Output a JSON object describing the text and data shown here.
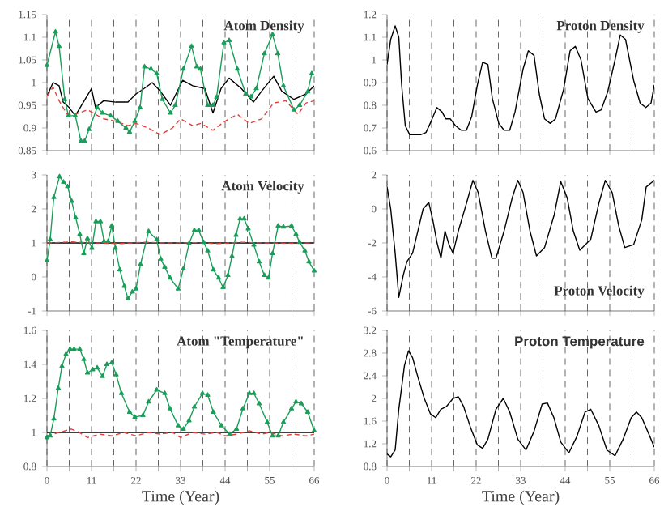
{
  "chart_data": [
    {
      "type": "line",
      "title": "Atom Density",
      "xlim": [
        0,
        66
      ],
      "ylim": [
        0.85,
        1.15
      ],
      "yticks": [
        0.85,
        0.9,
        0.95,
        1,
        1.05,
        1.1,
        1.15
      ],
      "tick_labels": "y",
      "grid": "x",
      "xticks": [
        0,
        {
          "value": 5.5,
          "label": null
        },
        11,
        {
          "value": 16.5,
          "label": null
        },
        22,
        {
          "value": 27.5,
          "label": null
        },
        33,
        {
          "value": 38.5,
          "label": null
        },
        44,
        {
          "value": 49.5,
          "label": null
        },
        55,
        {
          "value": 60.5,
          "label": null
        },
        66
      ],
      "series": [
        {
          "color": "#000000",
          "line_style": "solid",
          "marker": "none",
          "x": [
            0,
            1.5,
            3,
            4,
            5.5,
            7,
            9,
            11,
            12,
            14,
            17,
            20,
            22,
            24,
            26,
            28,
            30.5,
            33.5,
            36,
            39,
            41,
            43,
            45,
            48,
            51,
            53,
            56,
            58,
            61,
            64,
            66
          ],
          "values": [
            0.97,
            1.0,
            0.993,
            0.957,
            0.945,
            0.927,
            0.957,
            0.987,
            0.945,
            0.96,
            0.957,
            0.957,
            0.975,
            0.987,
            1.0,
            0.981,
            0.95,
            1.005,
            0.993,
            0.987,
            0.933,
            0.987,
            1.01,
            0.987,
            0.957,
            0.981,
            1.014,
            0.981,
            0.963,
            0.975,
            0.993
          ]
        },
        {
          "color": "#e0403a",
          "line_style": "dashed",
          "marker": "none",
          "x": [
            0,
            1.5,
            3,
            5,
            7,
            10,
            14,
            17,
            20,
            22,
            25,
            28,
            31,
            33,
            36,
            38,
            41,
            44,
            47,
            50,
            53,
            56,
            59,
            62,
            64,
            66
          ],
          "values": [
            0.97,
            0.99,
            0.96,
            0.93,
            0.93,
            0.94,
            0.92,
            0.915,
            0.905,
            0.91,
            0.9,
            0.885,
            0.9,
            0.92,
            0.905,
            0.91,
            0.895,
            0.915,
            0.93,
            0.91,
            0.92,
            0.955,
            0.96,
            0.93,
            0.955,
            0.96
          ]
        },
        {
          "color": "#1a9e5a",
          "line_style": "solid",
          "marker": "triangle",
          "x": [
            0,
            2.1,
            3,
            4.4,
            5.3,
            7,
            8.4,
            9.3,
            10.4,
            12.4,
            13.7,
            15.7,
            17.5,
            19.5,
            20.4,
            21.7,
            23,
            24.1,
            25.7,
            27.1,
            28.5,
            30.5,
            31.7,
            33.7,
            35.7,
            37,
            37.9,
            39.7,
            41,
            41.9,
            43.7,
            45,
            47,
            49.1,
            50.4,
            51.7,
            53.7,
            55.7,
            57,
            58.4,
            61,
            62.4,
            64.4,
            65.4
          ],
          "values": [
            1.038,
            1.112,
            1.08,
            0.963,
            0.927,
            0.927,
            0.871,
            0.871,
            0.897,
            0.945,
            0.933,
            0.927,
            0.915,
            0.9,
            0.891,
            0.915,
            0.945,
            1.035,
            1.03,
            1.02,
            0.963,
            0.933,
            0.95,
            1.03,
            1.08,
            1.035,
            1.03,
            0.95,
            0.95,
            0.968,
            1.088,
            1.093,
            1.03,
            0.975,
            0.969,
            0.987,
            1.064,
            1.106,
            1.064,
            0.993,
            0.94,
            0.95,
            0.98,
            1.02
          ]
        }
      ]
    },
    {
      "type": "line",
      "title": "Proton Density",
      "xlim": [
        0,
        66
      ],
      "ylim": [
        0.6,
        1.2
      ],
      "yticks": [
        0.6,
        0.7,
        0.8,
        0.9,
        1,
        1.1,
        1.2
      ],
      "tick_labels": "y",
      "grid": "x",
      "xticks": [
        0,
        {
          "value": 5.5,
          "label": null
        },
        11,
        {
          "value": 16.5,
          "label": null
        },
        22,
        {
          "value": 27.5,
          "label": null
        },
        33,
        {
          "value": 38.5,
          "label": null
        },
        44,
        {
          "value": 49.5,
          "label": null
        },
        55,
        {
          "value": 60.5,
          "label": null
        },
        66
      ],
      "series": [
        {
          "color": "#000000",
          "line_style": "solid",
          "marker": "none",
          "x": [
            0,
            0.9,
            2,
            2.9,
            3.6,
            4.5,
            5.6,
            6.9,
            8.3,
            9.6,
            10.9,
            12.3,
            13.6,
            14.5,
            15.6,
            16.9,
            18.3,
            19.6,
            20.9,
            22.3,
            23.6,
            24.9,
            26,
            27.6,
            28.9,
            30.3,
            31.6,
            33.6,
            34.9,
            36.3,
            37.6,
            38.9,
            40.3,
            41.6,
            43.6,
            45.2,
            46.5,
            47.9,
            49.6,
            51.6,
            52.9,
            54.5,
            56.3,
            57.6,
            58.9,
            60.9,
            62.5,
            63.9,
            65.2,
            66
          ],
          "values": [
            0.98,
            1.09,
            1.15,
            1.1,
            0.89,
            0.71,
            0.67,
            0.67,
            0.67,
            0.68,
            0.73,
            0.79,
            0.77,
            0.74,
            0.74,
            0.71,
            0.69,
            0.69,
            0.75,
            0.89,
            0.99,
            0.98,
            0.83,
            0.72,
            0.69,
            0.69,
            0.77,
            0.96,
            1.04,
            1.02,
            0.85,
            0.74,
            0.72,
            0.74,
            0.87,
            1.04,
            1.06,
            1.0,
            0.83,
            0.77,
            0.78,
            0.86,
            1.0,
            1.11,
            1.09,
            0.91,
            0.81,
            0.79,
            0.81,
            0.89
          ]
        }
      ]
    },
    {
      "type": "line",
      "title": "Atom Velocity",
      "xlim": [
        0,
        66
      ],
      "ylim": [
        -1,
        3
      ],
      "yticks": [
        -1,
        0,
        1,
        2,
        3
      ],
      "tick_labels": "y",
      "grid": "x",
      "xticks": [
        0,
        {
          "value": 5.5,
          "label": null
        },
        11,
        {
          "value": 16.5,
          "label": null
        },
        22,
        {
          "value": 27.5,
          "label": null
        },
        33,
        {
          "value": 38.5,
          "label": null
        },
        44,
        {
          "value": 49.5,
          "label": null
        },
        55,
        {
          "value": 60.5,
          "label": null
        },
        66
      ],
      "series": [
        {
          "color": "#000000",
          "line_style": "solid",
          "marker": "none",
          "x": [
            0,
            33,
            66
          ],
          "values": [
            1.0,
            1.0,
            1.0
          ]
        },
        {
          "color": "#e0403a",
          "line_style": "dashed",
          "marker": "none",
          "x": [
            0,
            6,
            12,
            18,
            24,
            30,
            36,
            42,
            48,
            54,
            60,
            66
          ],
          "values": [
            1.0,
            1.03,
            1.0,
            0.98,
            1.02,
            1.0,
            1.01,
            0.98,
            1.02,
            1.0,
            0.99,
            1.0
          ]
        },
        {
          "color": "#1a9e5a",
          "line_style": "solid",
          "marker": "triangle",
          "x": [
            0,
            0.8,
            1.7,
            3.1,
            4.1,
            5.1,
            6.1,
            7.1,
            8.1,
            9.1,
            10.0,
            11.1,
            12.1,
            13.2,
            14.1,
            15.1,
            16.0,
            16.9,
            18.0,
            19.1,
            20.0,
            21.1,
            22.0,
            23.1,
            25.1,
            27.1,
            28.1,
            29.1,
            30.4,
            32.4,
            33.7,
            35.1,
            36.4,
            37.5,
            38.7,
            39.7,
            41.1,
            42.4,
            43.5,
            44.7,
            45.7,
            46.7,
            47.7,
            48.7,
            49.7,
            51.1,
            52.4,
            53.7,
            54.7,
            55.7,
            57.1,
            58.4,
            60.4,
            61.5,
            62.4,
            63.7,
            64.7,
            66.0
          ],
          "values": [
            0.48,
            1.1,
            2.34,
            2.95,
            2.79,
            2.66,
            2.23,
            1.74,
            1.26,
            0.69,
            1.13,
            0.85,
            1.63,
            1.63,
            1.05,
            1.05,
            1.5,
            0.85,
            0.21,
            -0.27,
            -0.63,
            -0.44,
            -0.35,
            0.37,
            1.34,
            1.1,
            0.53,
            0.29,
            -0.03,
            -0.35,
            0.24,
            0.98,
            1.37,
            1.37,
            1.02,
            0.77,
            0.21,
            -0.03,
            -0.31,
            0.05,
            0.61,
            1.23,
            1.71,
            1.71,
            1.42,
            0.94,
            0.45,
            0.05,
            -0.03,
            0.69,
            1.5,
            1.47,
            1.5,
            1.26,
            1.02,
            0.77,
            0.45,
            0.18
          ]
        }
      ]
    },
    {
      "type": "line",
      "title": "Proton Velocity",
      "xlim": [
        0,
        66
      ],
      "ylim": [
        -6,
        2
      ],
      "yticks": [
        -6,
        -4,
        -2,
        0,
        2
      ],
      "tick_labels": "y",
      "grid": "x",
      "xticks": [
        0,
        {
          "value": 5.5,
          "label": null
        },
        11,
        {
          "value": 16.5,
          "label": null
        },
        22,
        {
          "value": 27.5,
          "label": null
        },
        33,
        {
          "value": 38.5,
          "label": null
        },
        44,
        {
          "value": 49.5,
          "label": null
        },
        55,
        {
          "value": 60.5,
          "label": null
        },
        66
      ],
      "series": [
        {
          "color": "#000000",
          "line_style": "solid",
          "marker": "none",
          "x": [
            0,
            0.9,
            2,
            2.9,
            4,
            4.9,
            6.3,
            7.6,
            8.9,
            10.3,
            11.3,
            12.3,
            13.3,
            14.3,
            15.3,
            16.3,
            17.6,
            19.6,
            21.2,
            22.5,
            24.3,
            25.9,
            26.9,
            28.9,
            30.9,
            32.3,
            33.6,
            35.3,
            36.9,
            38.9,
            41.3,
            42.9,
            44.5,
            46,
            47.6,
            50.3,
            52.3,
            53.9,
            55.6,
            57.2,
            58.7,
            60.9,
            62.9,
            64,
            66
          ],
          "values": [
            1.29,
            0.0,
            -2.6,
            -5.2,
            -3.9,
            -3.1,
            -2.6,
            -1.3,
            0.0,
            0.38,
            -0.65,
            -1.95,
            -2.9,
            -1.3,
            -2.1,
            -2.6,
            -1.3,
            0.32,
            1.68,
            0.96,
            -1.3,
            -2.9,
            -2.9,
            -1.3,
            0.64,
            1.68,
            0.96,
            -1.3,
            -2.76,
            -2.27,
            -0.33,
            1.61,
            0.64,
            -1.3,
            -2.43,
            -1.79,
            0.32,
            1.68,
            0.96,
            -0.98,
            -2.27,
            -2.1,
            -0.65,
            1.29,
            1.68
          ]
        }
      ]
    },
    {
      "type": "line",
      "title": "Atom \"Temperature\"",
      "xlabel": "Time (Year)",
      "xlim": [
        0,
        66
      ],
      "ylim": [
        0.8,
        1.6
      ],
      "yticks": [
        0.8,
        1,
        1.2,
        1.4,
        1.6
      ],
      "grid": "x",
      "xticks": [
        0,
        {
          "value": 5.5,
          "label": null
        },
        11,
        {
          "value": 16.5,
          "label": null
        },
        22,
        {
          "value": 27.5,
          "label": null
        },
        33,
        {
          "value": 38.5,
          "label": null
        },
        44,
        {
          "value": 49.5,
          "label": null
        },
        55,
        {
          "value": 60.5,
          "label": null
        },
        66
      ],
      "series": [
        {
          "color": "#000000",
          "line_style": "solid",
          "marker": "none",
          "x": [
            0,
            33,
            66
          ],
          "values": [
            1.0,
            1.0,
            1.0
          ]
        },
        {
          "color": "#e0403a",
          "line_style": "dashed",
          "marker": "none",
          "x": [
            0,
            3,
            6,
            8,
            10,
            13,
            16,
            19,
            22,
            25,
            28,
            31,
            33,
            36,
            39,
            42,
            44,
            47,
            50,
            53,
            55,
            58,
            61,
            64,
            66
          ],
          "values": [
            0.98,
            1.0,
            1.02,
            1.0,
            0.97,
            0.99,
            0.98,
            1.0,
            0.98,
            1.0,
            0.99,
            1.0,
            0.97,
            1.0,
            0.99,
            1.0,
            0.98,
            0.99,
            1.01,
            0.99,
            1.0,
            0.98,
            0.99,
            0.98,
            0.99
          ]
        },
        {
          "color": "#1a9e5a",
          "line_style": "solid",
          "marker": "triangle",
          "x": [
            0,
            0.8,
            1.7,
            2.8,
            3.7,
            4.7,
            5.7,
            6.7,
            8.1,
            9.1,
            10.0,
            11.3,
            12.4,
            13.7,
            14.8,
            16.0,
            17.1,
            18.4,
            20.4,
            21.7,
            23.7,
            25.1,
            27.1,
            29.1,
            30.4,
            32.4,
            33.7,
            35.1,
            36.4,
            38.4,
            39.7,
            41.1,
            43.1,
            45.1,
            46.8,
            48.4,
            50.0,
            51.1,
            52.4,
            54.4,
            55.7,
            57.1,
            58.4,
            60.4,
            61.5,
            62.8,
            64.4,
            66
          ],
          "values": [
            0.97,
            0.98,
            1.08,
            1.26,
            1.39,
            1.46,
            1.49,
            1.49,
            1.49,
            1.43,
            1.35,
            1.37,
            1.38,
            1.33,
            1.4,
            1.41,
            1.34,
            1.23,
            1.12,
            1.09,
            1.1,
            1.18,
            1.25,
            1.23,
            1.14,
            1.04,
            1.02,
            1.07,
            1.15,
            1.23,
            1.22,
            1.12,
            1.04,
            0.99,
            1.02,
            1.14,
            1.23,
            1.23,
            1.17,
            1.06,
            0.98,
            0.98,
            1.06,
            1.14,
            1.18,
            1.17,
            1.12,
            1.01
          ]
        }
      ]
    },
    {
      "type": "line",
      "title": "Proton Temperature",
      "xlabel": "Time (Year)",
      "xlim": [
        0,
        66
      ],
      "ylim": [
        0.8,
        3.2
      ],
      "yticks": [
        0.8,
        1.2,
        1.6,
        2,
        2.4,
        2.8,
        3.2
      ],
      "grid": "x",
      "xticks": [
        0,
        {
          "value": 5.5,
          "label": null
        },
        11,
        {
          "value": 16.5,
          "label": null
        },
        22,
        {
          "value": 27.5,
          "label": null
        },
        33,
        {
          "value": 38.5,
          "label": null
        },
        44,
        {
          "value": 49.5,
          "label": null
        },
        55,
        {
          "value": 60.5,
          "label": null
        },
        66
      ],
      "series": [
        {
          "color": "#000000",
          "line_style": "solid",
          "marker": "none",
          "x": [
            0,
            0.9,
            2,
            2.9,
            4.3,
            5.3,
            6.3,
            7.6,
            9.2,
            10.7,
            12,
            13.3,
            14.7,
            16.3,
            17.6,
            18.9,
            20.7,
            22.3,
            23.6,
            24.9,
            26.9,
            28.7,
            30.3,
            32.3,
            34.3,
            36.3,
            38.3,
            39.6,
            41.2,
            42.9,
            44.9,
            46.9,
            48.9,
            50.3,
            52.3,
            54.3,
            56.3,
            58.3,
            60.3,
            61.6,
            62.9,
            64.9,
            66
          ],
          "values": [
            1.02,
            0.97,
            1.09,
            1.81,
            2.58,
            2.84,
            2.72,
            2.38,
            2.0,
            1.73,
            1.66,
            1.81,
            1.86,
            2.0,
            2.03,
            1.86,
            1.47,
            1.18,
            1.12,
            1.28,
            1.81,
            2.0,
            1.76,
            1.28,
            1.09,
            1.42,
            1.9,
            1.92,
            1.66,
            1.23,
            1.04,
            1.33,
            1.76,
            1.81,
            1.52,
            1.09,
            0.99,
            1.28,
            1.66,
            1.76,
            1.66,
            1.33,
            1.14
          ]
        }
      ]
    }
  ]
}
